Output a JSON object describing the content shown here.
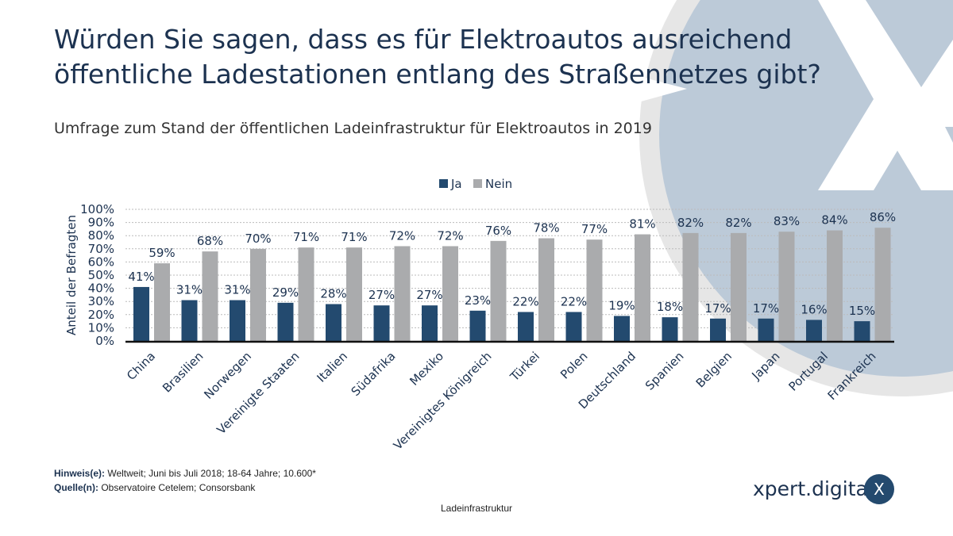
{
  "title_line1": "Würden Sie sagen, dass es für Elektroautos ausreichend",
  "title_line2": "öffentliche Ladestationen entlang des Straßennetzes gibt?",
  "subtitle": "Umfrage zum Stand der öffentlichen Ladeinfrastruktur für Elektroautos in 2019",
  "notes": {
    "hinweis_label": "Hinweis(e):",
    "hinweis": " Weltweit; Juni bis Juli 2018; 18-64 Jahre; 10.600*",
    "quelle_label": "Quelle(n):",
    "quelle": " Observatoire Cetelem; Consorsbank"
  },
  "footer": "Ladeinfrastruktur",
  "brand": {
    "name": "xpert.digital",
    "logo_letter": "X"
  },
  "colors": {
    "ja": "#234a6f",
    "nein": "#aaabad",
    "background_circle": "#bccad8",
    "background_ring": "#e6e6e6"
  },
  "chart_data": {
    "type": "bar",
    "title": "Würden Sie sagen, dass es für Elektroautos ausreichend öffentliche Ladestationen entlang des Straßennetzes gibt?",
    "xlabel": "",
    "ylabel": "Anteil der Befragten",
    "ylim": [
      0,
      100
    ],
    "yticks": [
      "0%",
      "10%",
      "20%",
      "30%",
      "40%",
      "50%",
      "60%",
      "70%",
      "80%",
      "90%",
      "100%"
    ],
    "grid": true,
    "legend_position": "top",
    "categories": [
      "China",
      "Brasilien",
      "Norwegen",
      "Vereinigte Staaten",
      "Italien",
      "Südafrika",
      "Mexiko",
      "Vereinigtes Königreich",
      "Türkei",
      "Polen",
      "Deutschland",
      "Spanien",
      "Belgien",
      "Japan",
      "Portugal",
      "Frankreich"
    ],
    "series": [
      {
        "name": "Ja",
        "values": [
          41,
          31,
          31,
          29,
          28,
          27,
          27,
          23,
          22,
          22,
          19,
          18,
          17,
          17,
          16,
          15
        ]
      },
      {
        "name": "Nein",
        "values": [
          59,
          68,
          70,
          71,
          71,
          72,
          72,
          76,
          78,
          77,
          81,
          82,
          82,
          83,
          84,
          86
        ]
      }
    ]
  }
}
